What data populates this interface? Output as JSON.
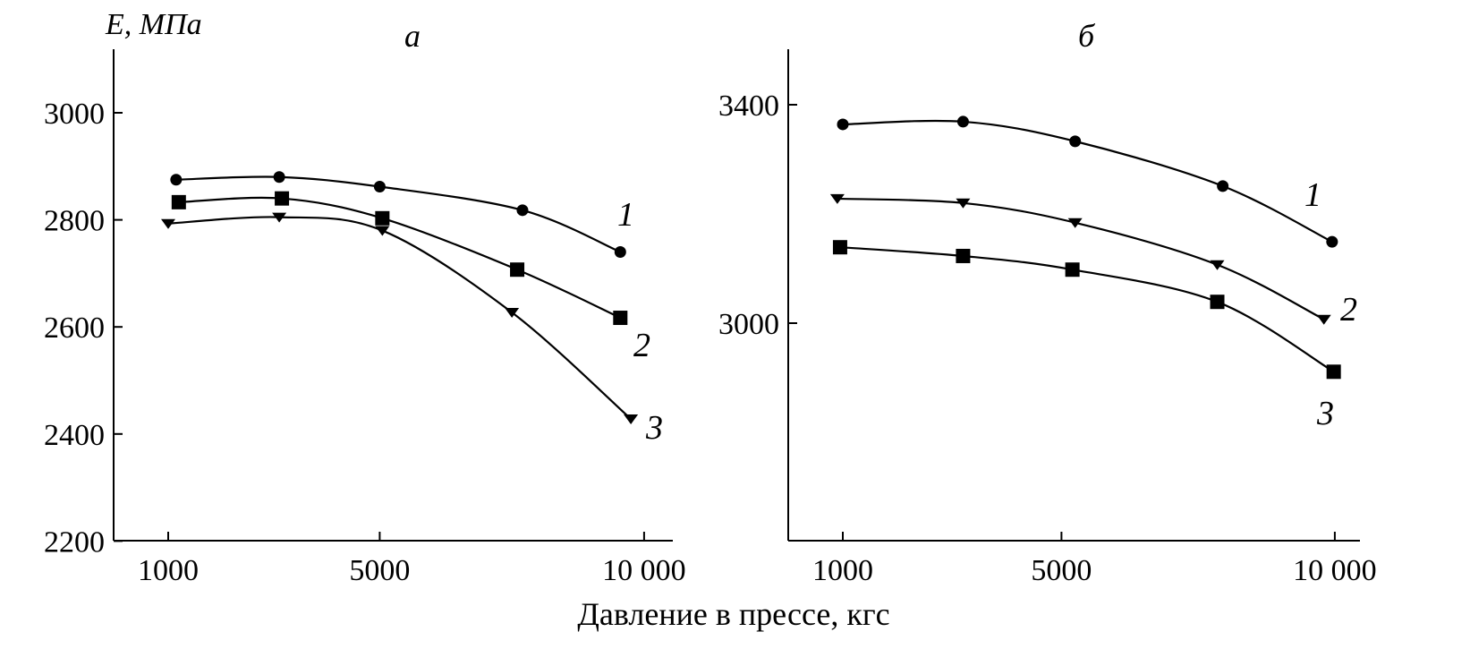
{
  "chart_data": [
    {
      "type": "line",
      "title": "а",
      "ylabel": "E, МПа",
      "xlabel": "Давление в прессе, кгс",
      "xlim": [
        0,
        10500
      ],
      "ylim": [
        2200,
        3120
      ],
      "xticks": [
        1000,
        5000,
        10000
      ],
      "xtick_labels": [
        "1000",
        "5000",
        "10 000"
      ],
      "yticks": [
        2200,
        2400,
        2600,
        2800,
        3000
      ],
      "ytick_labels": [
        "2200",
        "2400",
        "2600",
        "2800",
        "3000"
      ],
      "grid": false,
      "series": [
        {
          "name": "1",
          "marker": "circle",
          "x": [
            1150,
            3100,
            5000,
            7700,
            9550
          ],
          "y": [
            2875,
            2880,
            2862,
            2818,
            2740
          ]
        },
        {
          "name": "2",
          "marker": "square",
          "x": [
            1200,
            3150,
            5050,
            7600,
            9550
          ],
          "y": [
            2833,
            2840,
            2803,
            2707,
            2617
          ]
        },
        {
          "name": "3",
          "marker": "triangle-down",
          "x": [
            1000,
            3100,
            5050,
            7500,
            9750
          ],
          "y": [
            2793,
            2805,
            2780,
            2627,
            2428
          ]
        }
      ]
    },
    {
      "type": "line",
      "title": "б",
      "xlim": [
        0,
        10500
      ],
      "ylim": [
        2600,
        3500
      ],
      "xticks": [
        1000,
        5000,
        10000
      ],
      "xtick_labels": [
        "1000",
        "5000",
        "10 000"
      ],
      "yticks": [
        3000,
        3400
      ],
      "ytick_labels": [
        "3000",
        "3400"
      ],
      "grid": false,
      "series": [
        {
          "name": "1",
          "marker": "circle",
          "x": [
            1000,
            3200,
            5250,
            7950,
            9950
          ],
          "y": [
            3364,
            3369,
            3333,
            3251,
            3149
          ]
        },
        {
          "name": "2",
          "marker": "triangle-down",
          "x": [
            900,
            3200,
            5250,
            7850,
            9800
          ],
          "y": [
            3228,
            3220,
            3184,
            3107,
            3007
          ]
        },
        {
          "name": "3",
          "marker": "square",
          "x": [
            950,
            3200,
            5200,
            7850,
            9980
          ],
          "y": [
            3139,
            3123,
            3098,
            3039,
            2911
          ]
        }
      ]
    }
  ]
}
